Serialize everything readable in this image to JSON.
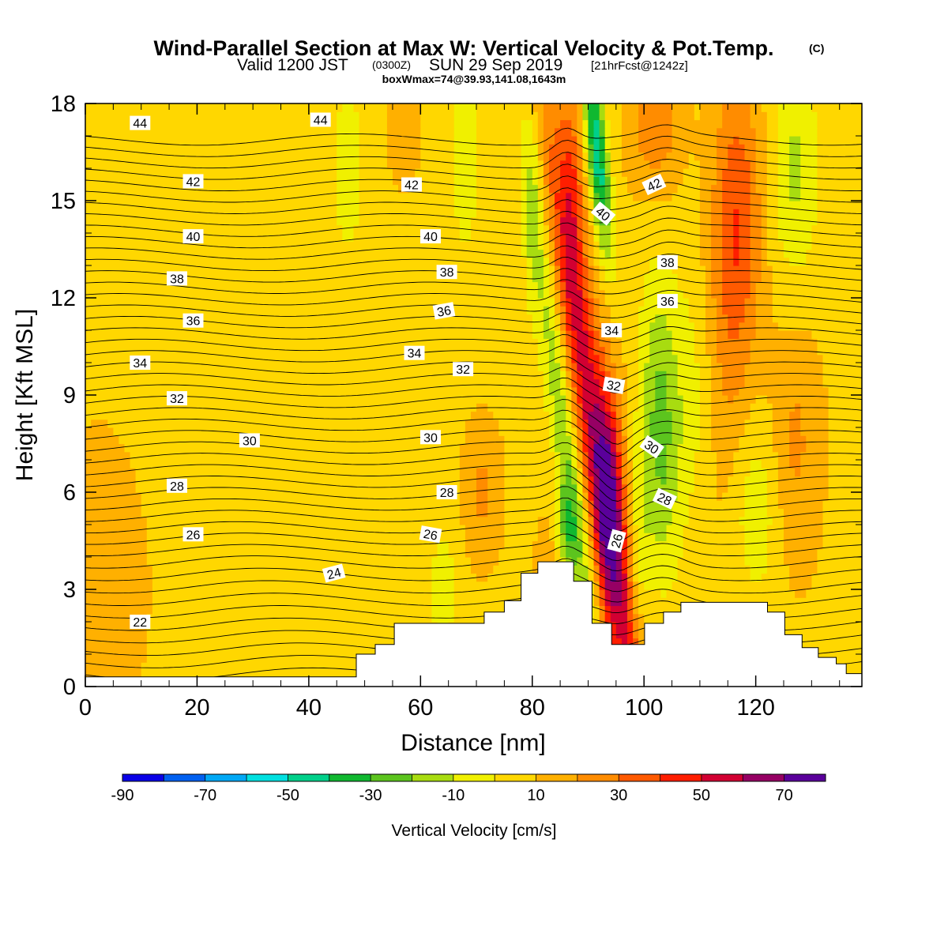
{
  "header": {
    "title_main": "Wind-Parallel Section at Max W: Vertical Velocity & Pot.Temp.",
    "title_mark": "(C)",
    "valid_a": "Valid 1200 JST",
    "valid_b": "(0300Z)",
    "valid_c": "SUN 29 Sep 2019",
    "valid_d": "[21hrFcst@1242z]",
    "box_info": "boxWmax=74@39.93,141.08,1643m"
  },
  "chart_data": {
    "type": "heatmap",
    "title": "Wind-Parallel Section at Max W: Vertical Velocity & Pot.Temp.",
    "xlabel": "Distance [nm]",
    "ylabel": "Height [Kft MSL]",
    "xlim": [
      0,
      139
    ],
    "ylim": [
      0,
      18
    ],
    "x_ticks": [
      0,
      20,
      40,
      60,
      80,
      100,
      120
    ],
    "y_ticks": [
      0,
      3,
      6,
      9,
      12,
      15,
      18
    ],
    "colorbar": {
      "label": "Vertical Velocity [cm/s]",
      "bounds": [
        -90,
        -80,
        -70,
        -60,
        -50,
        -40,
        -30,
        -20,
        -10,
        0,
        10,
        20,
        30,
        40,
        50,
        60,
        70,
        80
      ],
      "tick_labels": [
        "-90",
        "-70",
        "-50",
        "-30",
        "-10",
        "10",
        "30",
        "50",
        "70"
      ],
      "colors": [
        "#0a00e6",
        "#0060f0",
        "#00a8f5",
        "#00e0e0",
        "#00d08a",
        "#10b830",
        "#5cc41e",
        "#a8dc10",
        "#f0f000",
        "#ffd700",
        "#ffb000",
        "#ff8c00",
        "#ff5a00",
        "#ff1e00",
        "#d20032",
        "#960064",
        "#5a009b"
      ]
    },
    "theta_contour_levels": [
      21,
      21.5,
      22,
      22.5,
      23,
      23.5,
      24,
      24.5,
      25,
      25.5,
      26,
      26.5,
      27,
      27.5,
      28,
      28.5,
      29,
      29.5,
      30,
      30.5,
      31,
      31.5,
      32,
      32.5,
      33,
      33.5,
      34,
      34.5,
      35,
      35.5,
      36,
      36.5,
      37,
      37.5,
      38,
      38.5,
      39,
      39.5,
      40,
      40.5,
      41,
      41.5,
      42,
      42.5,
      43,
      43.5,
      44,
      44.5
    ],
    "theta_labels": [
      {
        "text": "44",
        "x": 9.8,
        "y": 17.4,
        "angle": 0
      },
      {
        "text": "44",
        "x": 42.1,
        "y": 17.5,
        "angle": 0
      },
      {
        "text": "42",
        "x": 19.3,
        "y": 15.6,
        "angle": 0
      },
      {
        "text": "42",
        "x": 58.4,
        "y": 15.5,
        "angle": 0
      },
      {
        "text": "42",
        "x": 101.8,
        "y": 15.5,
        "angle": -25
      },
      {
        "text": "40",
        "x": 19.3,
        "y": 13.9,
        "angle": 0
      },
      {
        "text": "40",
        "x": 61.8,
        "y": 13.9,
        "angle": 0
      },
      {
        "text": "40",
        "x": 92.7,
        "y": 14.6,
        "angle": 40
      },
      {
        "text": "38",
        "x": 16.4,
        "y": 12.6,
        "angle": 0
      },
      {
        "text": "38",
        "x": 64.7,
        "y": 12.8,
        "angle": 0
      },
      {
        "text": "38",
        "x": 104.2,
        "y": 13.1,
        "angle": 0
      },
      {
        "text": "36",
        "x": 19.3,
        "y": 11.3,
        "angle": 0
      },
      {
        "text": "36",
        "x": 64.2,
        "y": 11.6,
        "angle": -10
      },
      {
        "text": "36",
        "x": 104.2,
        "y": 11.9,
        "angle": 0
      },
      {
        "text": "34",
        "x": 9.8,
        "y": 10.0,
        "angle": 0
      },
      {
        "text": "34",
        "x": 58.9,
        "y": 10.3,
        "angle": 0
      },
      {
        "text": "34",
        "x": 94.2,
        "y": 11.0,
        "angle": 0
      },
      {
        "text": "32",
        "x": 16.4,
        "y": 8.9,
        "angle": 0
      },
      {
        "text": "32",
        "x": 67.6,
        "y": 9.8,
        "angle": 0
      },
      {
        "text": "32",
        "x": 94.6,
        "y": 9.3,
        "angle": 10
      },
      {
        "text": "30",
        "x": 29.4,
        "y": 7.6,
        "angle": 0
      },
      {
        "text": "30",
        "x": 61.8,
        "y": 7.7,
        "angle": 0
      },
      {
        "text": "30",
        "x": 101.4,
        "y": 7.4,
        "angle": 35
      },
      {
        "text": "28",
        "x": 16.4,
        "y": 6.2,
        "angle": 0
      },
      {
        "text": "28",
        "x": 64.7,
        "y": 6.0,
        "angle": 0
      },
      {
        "text": "28",
        "x": 103.7,
        "y": 5.8,
        "angle": 25
      },
      {
        "text": "26",
        "x": 19.3,
        "y": 4.7,
        "angle": 0
      },
      {
        "text": "26",
        "x": 61.8,
        "y": 4.7,
        "angle": 10
      },
      {
        "text": "26",
        "x": 95.1,
        "y": 4.5,
        "angle": -75
      },
      {
        "text": "24",
        "x": 44.5,
        "y": 3.5,
        "angle": -15
      },
      {
        "text": "22",
        "x": 9.8,
        "y": 2.0,
        "angle": 0
      }
    ],
    "terrain_profile": {
      "x": [
        0,
        48.5,
        48.5,
        51.9,
        51.9,
        55.3,
        55.3,
        71.4,
        71.4,
        75.0,
        75.0,
        78.0,
        78.0,
        81.0,
        81.0,
        87.4,
        87.4,
        90.7,
        90.7,
        94.2,
        94.2,
        100.1,
        100.1,
        103.5,
        103.5,
        106.6,
        106.6,
        109.8,
        109.8,
        122.1,
        122.1,
        125.2,
        125.2,
        128.3,
        128.3,
        131.2,
        131.2,
        134.4,
        134.4,
        136.2,
        136.2,
        139
      ],
      "height": [
        0.3,
        0.3,
        1.0,
        1.0,
        1.3,
        1.3,
        1.95,
        1.95,
        2.3,
        2.3,
        2.65,
        2.65,
        3.5,
        3.5,
        3.85,
        3.85,
        3.25,
        3.25,
        1.95,
        1.95,
        1.3,
        1.3,
        1.95,
        1.95,
        2.3,
        2.3,
        2.6,
        2.6,
        2.6,
        2.6,
        2.3,
        2.3,
        1.6,
        1.6,
        1.2,
        1.2,
        0.9,
        0.9,
        0.7,
        0.7,
        0.4,
        0.4
      ]
    },
    "max_w_cm_s": 74,
    "max_w_location": [
      39.93,
      141.08
    ],
    "max_w_height_m": 1643,
    "grid": false
  }
}
